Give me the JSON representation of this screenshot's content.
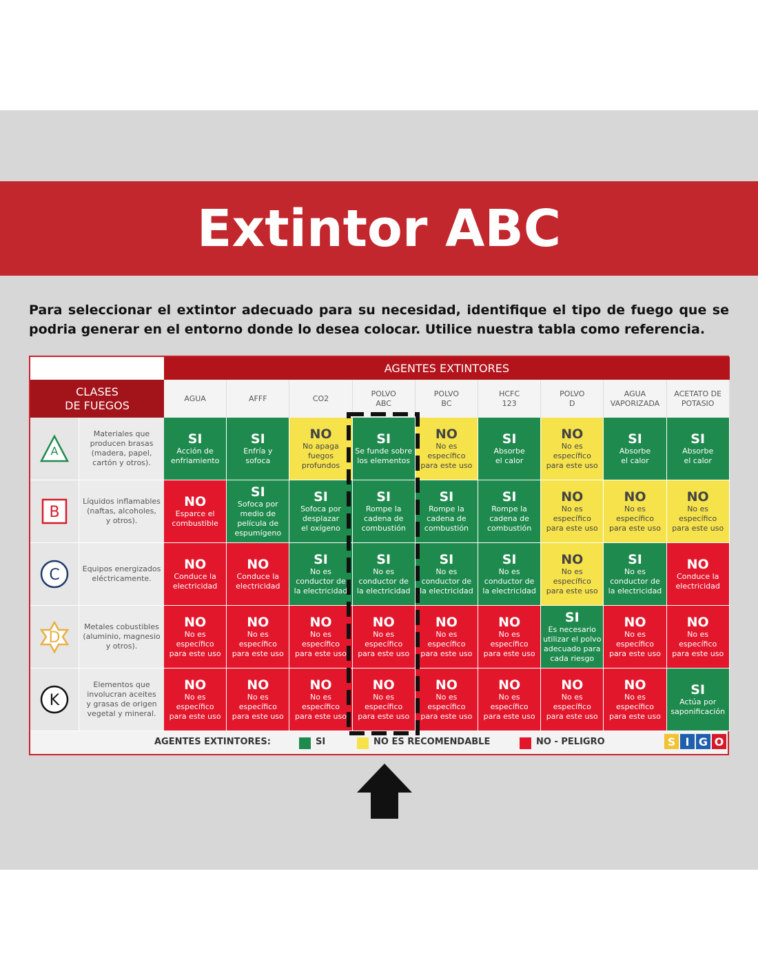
{
  "header": {
    "title": "Extintor ABC"
  },
  "intro": "Para seleccionar el extintor adecuado para su necesidad, identifique el tipo de fuego que se podria generar en el entorno donde lo desea colocar. Utilice nuestra tabla como referencia.",
  "table": {
    "group_header": "AGENTES EXTINTORES",
    "row_header": "CLASES\nDE FUEGOS",
    "columns": [
      "AGUA",
      "AFFF",
      "CO2",
      "POLVO\nABC",
      "POLVO\nBC",
      "HCFC\n123",
      "POLVO\nD",
      "AGUA\nVAPORIZADA",
      "ACETATO DE\nPOTASIO"
    ],
    "rows": [
      {
        "letter": "A",
        "description": "Materiales que\nproducen brasas\n(madera, papel,\ncartón y otros).",
        "cells": [
          {
            "status": "SI",
            "text": "Acción de\nenfriamiento",
            "color": "#1f8a4d"
          },
          {
            "status": "SI",
            "text": "Enfría y\nsofoca",
            "color": "#1f8a4d"
          },
          {
            "status": "NO",
            "text": "No apaga\nfuegos\nprofundos",
            "color": "#f6e34c"
          },
          {
            "status": "SI",
            "text": "Se funde sobre\nlos elementos",
            "color": "#1f8a4d"
          },
          {
            "status": "NO",
            "text": "No es\nespecífico\npara este uso",
            "color": "#f6e34c"
          },
          {
            "status": "SI",
            "text": "Absorbe\nel calor",
            "color": "#1f8a4d"
          },
          {
            "status": "NO",
            "text": "No es\nespecífico\npara este uso",
            "color": "#f6e34c"
          },
          {
            "status": "SI",
            "text": "Absorbe\nel calor",
            "color": "#1f8a4d"
          },
          {
            "status": "SI",
            "text": "Absorbe\nel calor",
            "color": "#1f8a4d"
          }
        ]
      },
      {
        "letter": "B",
        "description": "Líquidos inflamables\n(naftas, alcoholes,\ny otros).",
        "cells": [
          {
            "status": "NO",
            "text": "Esparce el\ncombustible",
            "color": "#e2172c"
          },
          {
            "status": "SI",
            "text": "Sofoca por\nmedio de\npelícula de\nespumígeno",
            "color": "#1f8a4d"
          },
          {
            "status": "SI",
            "text": "Sofoca por\ndesplazar\nel oxígeno",
            "color": "#1f8a4d"
          },
          {
            "status": "SI",
            "text": "Rompe la\ncadena de\ncombustión",
            "color": "#1f8a4d"
          },
          {
            "status": "SI",
            "text": "Rompe la\ncadena de\ncombustión",
            "color": "#1f8a4d"
          },
          {
            "status": "SI",
            "text": "Rompe la\ncadena de\ncombustión",
            "color": "#1f8a4d"
          },
          {
            "status": "NO",
            "text": "No es\nespecífico\npara este uso",
            "color": "#f6e34c"
          },
          {
            "status": "NO",
            "text": "No es\nespecífico\npara este uso",
            "color": "#f6e34c"
          },
          {
            "status": "NO",
            "text": "No es\nespecífico\npara este uso",
            "color": "#f6e34c"
          }
        ]
      },
      {
        "letter": "C",
        "description": "Equipos energizados\neléctricamente.",
        "cells": [
          {
            "status": "NO",
            "text": "Conduce la\nelectricidad",
            "color": "#e2172c"
          },
          {
            "status": "NO",
            "text": "Conduce la\nelectricidad",
            "color": "#e2172c"
          },
          {
            "status": "SI",
            "text": "No es\nconductor de\nla electricidad",
            "color": "#1f8a4d"
          },
          {
            "status": "SI",
            "text": "No es\nconductor de\nla electricidad",
            "color": "#1f8a4d"
          },
          {
            "status": "SI",
            "text": "No es\nconductor de\nla electricidad",
            "color": "#1f8a4d"
          },
          {
            "status": "SI",
            "text": "No es\nconductor de\nla electricidad",
            "color": "#1f8a4d"
          },
          {
            "status": "NO",
            "text": "No es\nespecífico\npara este uso",
            "color": "#f6e34c"
          },
          {
            "status": "SI",
            "text": "No es\nconductor de\nla electricidad",
            "color": "#1f8a4d"
          },
          {
            "status": "NO",
            "text": "Conduce la\nelectricidad",
            "color": "#e2172c"
          }
        ]
      },
      {
        "letter": "D",
        "description": "Metales cobustibles\n(aluminio, magnesio\ny otros).",
        "cells": [
          {
            "status": "NO",
            "text": "No es\nespecífico\npara este uso",
            "color": "#e2172c"
          },
          {
            "status": "NO",
            "text": "No es\nespecífico\npara este uso",
            "color": "#e2172c"
          },
          {
            "status": "NO",
            "text": "No es\nespecífico\npara este uso",
            "color": "#e2172c"
          },
          {
            "status": "NO",
            "text": "No es\nespecífico\npara este uso",
            "color": "#e2172c"
          },
          {
            "status": "NO",
            "text": "No es\nespecífico\npara este uso",
            "color": "#e2172c"
          },
          {
            "status": "NO",
            "text": "No es\nespecífico\npara este uso",
            "color": "#e2172c"
          },
          {
            "status": "SI",
            "text": "Es necesario\nutilizar el polvo\nadecuado para\ncada riesgo",
            "color": "#1f8a4d"
          },
          {
            "status": "NO",
            "text": "No es\nespecífico\npara este uso",
            "color": "#e2172c"
          },
          {
            "status": "NO",
            "text": "No es\nespecífico\npara este uso",
            "color": "#e2172c"
          }
        ]
      },
      {
        "letter": "K",
        "description": "Elementos que\ninvolucran aceites\ny grasas de origen\nvegetal y mineral.",
        "cells": [
          {
            "status": "NO",
            "text": "No es\nespecífico\npara este uso",
            "color": "#e2172c"
          },
          {
            "status": "NO",
            "text": "No es\nespecífico\npara este uso",
            "color": "#e2172c"
          },
          {
            "status": "NO",
            "text": "No es\nespecífico\npara este uso",
            "color": "#e2172c"
          },
          {
            "status": "NO",
            "text": "No es\nespecífico\npara este uso",
            "color": "#e2172c"
          },
          {
            "status": "NO",
            "text": "No es\nespecífico\npara este uso",
            "color": "#e2172c"
          },
          {
            "status": "NO",
            "text": "No es\nespecífico\npara este uso",
            "color": "#e2172c"
          },
          {
            "status": "NO",
            "text": "No es\nespecífico\npara este uso",
            "color": "#e2172c"
          },
          {
            "status": "NO",
            "text": "No es\nespecífico\npara este uso",
            "color": "#e2172c"
          },
          {
            "status": "SI",
            "text": "Actúa por\nsaponificación",
            "color": "#1f8a4d"
          }
        ]
      }
    ]
  },
  "legend": {
    "title": "AGENTES EXTINTORES:",
    "items": [
      {
        "label": "SI",
        "color": "#1f8a4d"
      },
      {
        "label": "NO ES RECOMENDABLE",
        "color": "#f6e34c"
      },
      {
        "label": "NO - PELIGRO",
        "color": "#e2172c"
      }
    ]
  },
  "logo": [
    "S",
    "I",
    "G",
    "O"
  ]
}
